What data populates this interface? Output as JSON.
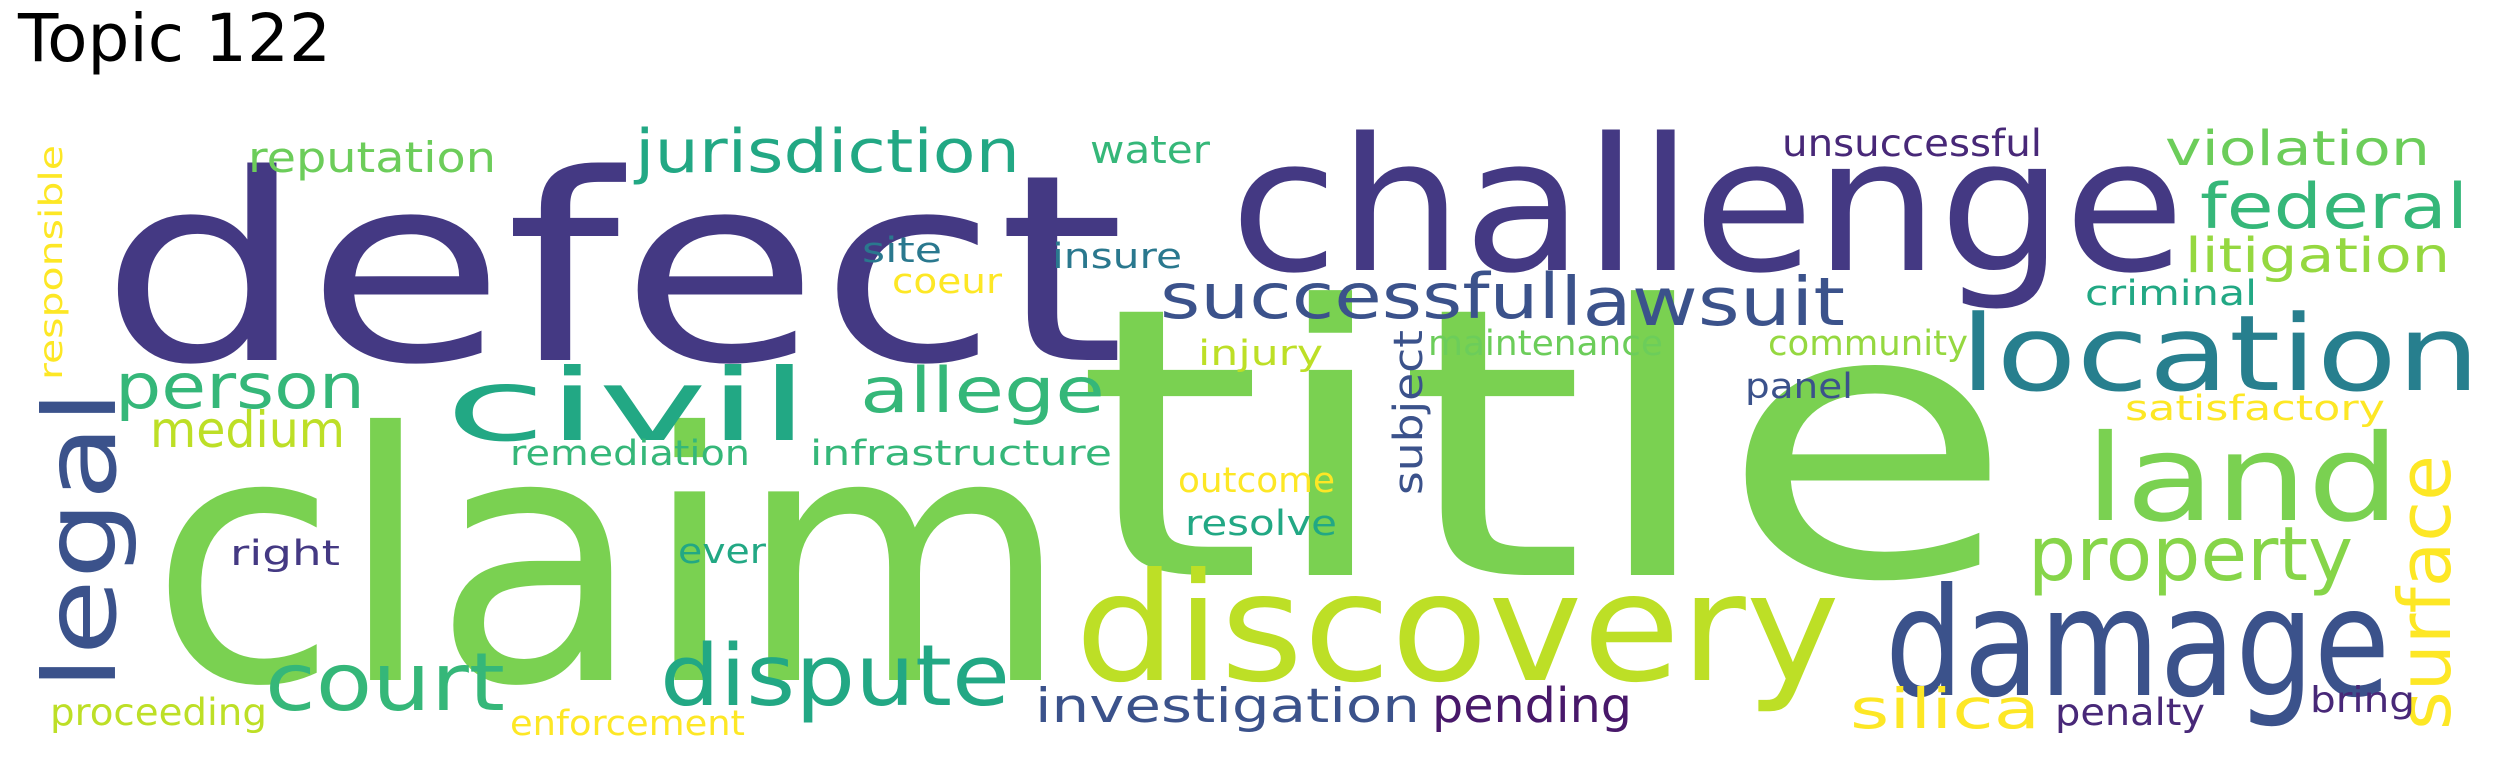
{
  "title": "Topic 122",
  "words": [
    {
      "text": "title",
      "color": "#7ad151"
    },
    {
      "text": "claim",
      "color": "#7ad151"
    },
    {
      "text": "defect",
      "color": "#443983"
    },
    {
      "text": "challenge",
      "color": "#443983"
    },
    {
      "text": "discovery",
      "color": "#bddf26"
    },
    {
      "text": "damage",
      "color": "#3b528b"
    },
    {
      "text": "location",
      "color": "#277f8e"
    },
    {
      "text": "land",
      "color": "#7ad151"
    },
    {
      "text": "civil",
      "color": "#22a884"
    },
    {
      "text": "dispute",
      "color": "#22a884"
    },
    {
      "text": "legal",
      "color": "#3b528b"
    },
    {
      "text": "court",
      "color": "#35b779"
    },
    {
      "text": "property",
      "color": "#86d549"
    },
    {
      "text": "surface",
      "color": "#fde725"
    },
    {
      "text": "lawsuit",
      "color": "#3b528b"
    },
    {
      "text": "successful",
      "color": "#3b528b"
    },
    {
      "text": "federal",
      "color": "#35b779"
    },
    {
      "text": "person",
      "color": "#35b779"
    },
    {
      "text": "allege",
      "color": "#35b779"
    },
    {
      "text": "jurisdiction",
      "color": "#22a884"
    },
    {
      "text": "investigation",
      "color": "#3b528b"
    },
    {
      "text": "pending",
      "color": "#48186a"
    },
    {
      "text": "silica",
      "color": "#fde725"
    },
    {
      "text": "violation",
      "color": "#6ccd5a"
    },
    {
      "text": "litigation",
      "color": "#95d840"
    },
    {
      "text": "medium",
      "color": "#bddf26"
    },
    {
      "text": "subject",
      "color": "#3b528b"
    },
    {
      "text": "reputation",
      "color": "#6ccd5a"
    },
    {
      "text": "unsuccessful",
      "color": "#482878"
    },
    {
      "text": "water",
      "color": "#35b779"
    },
    {
      "text": "penalty",
      "color": "#482878"
    },
    {
      "text": "bring",
      "color": "#482878"
    },
    {
      "text": "responsible",
      "color": "#fde725"
    },
    {
      "text": "proceeding",
      "color": "#bddf26"
    },
    {
      "text": "enforcement",
      "color": "#fde725"
    },
    {
      "text": "remediation",
      "color": "#35b779"
    },
    {
      "text": "infrastructure",
      "color": "#35b779"
    },
    {
      "text": "maintenance",
      "color": "#6ccd5a"
    },
    {
      "text": "community",
      "color": "#95d840"
    },
    {
      "text": "criminal",
      "color": "#22a884"
    },
    {
      "text": "satisfactory",
      "color": "#fde725"
    },
    {
      "text": "panel",
      "color": "#3b528b"
    },
    {
      "text": "injury",
      "color": "#bddf26"
    },
    {
      "text": "outcome",
      "color": "#fde725"
    },
    {
      "text": "resolve",
      "color": "#22a884"
    },
    {
      "text": "site",
      "color": "#2a788e"
    },
    {
      "text": "insure",
      "color": "#2a788e"
    },
    {
      "text": "coeur",
      "color": "#fde725"
    },
    {
      "text": "right",
      "color": "#443983"
    },
    {
      "text": "ever",
      "color": "#22a884"
    }
  ]
}
